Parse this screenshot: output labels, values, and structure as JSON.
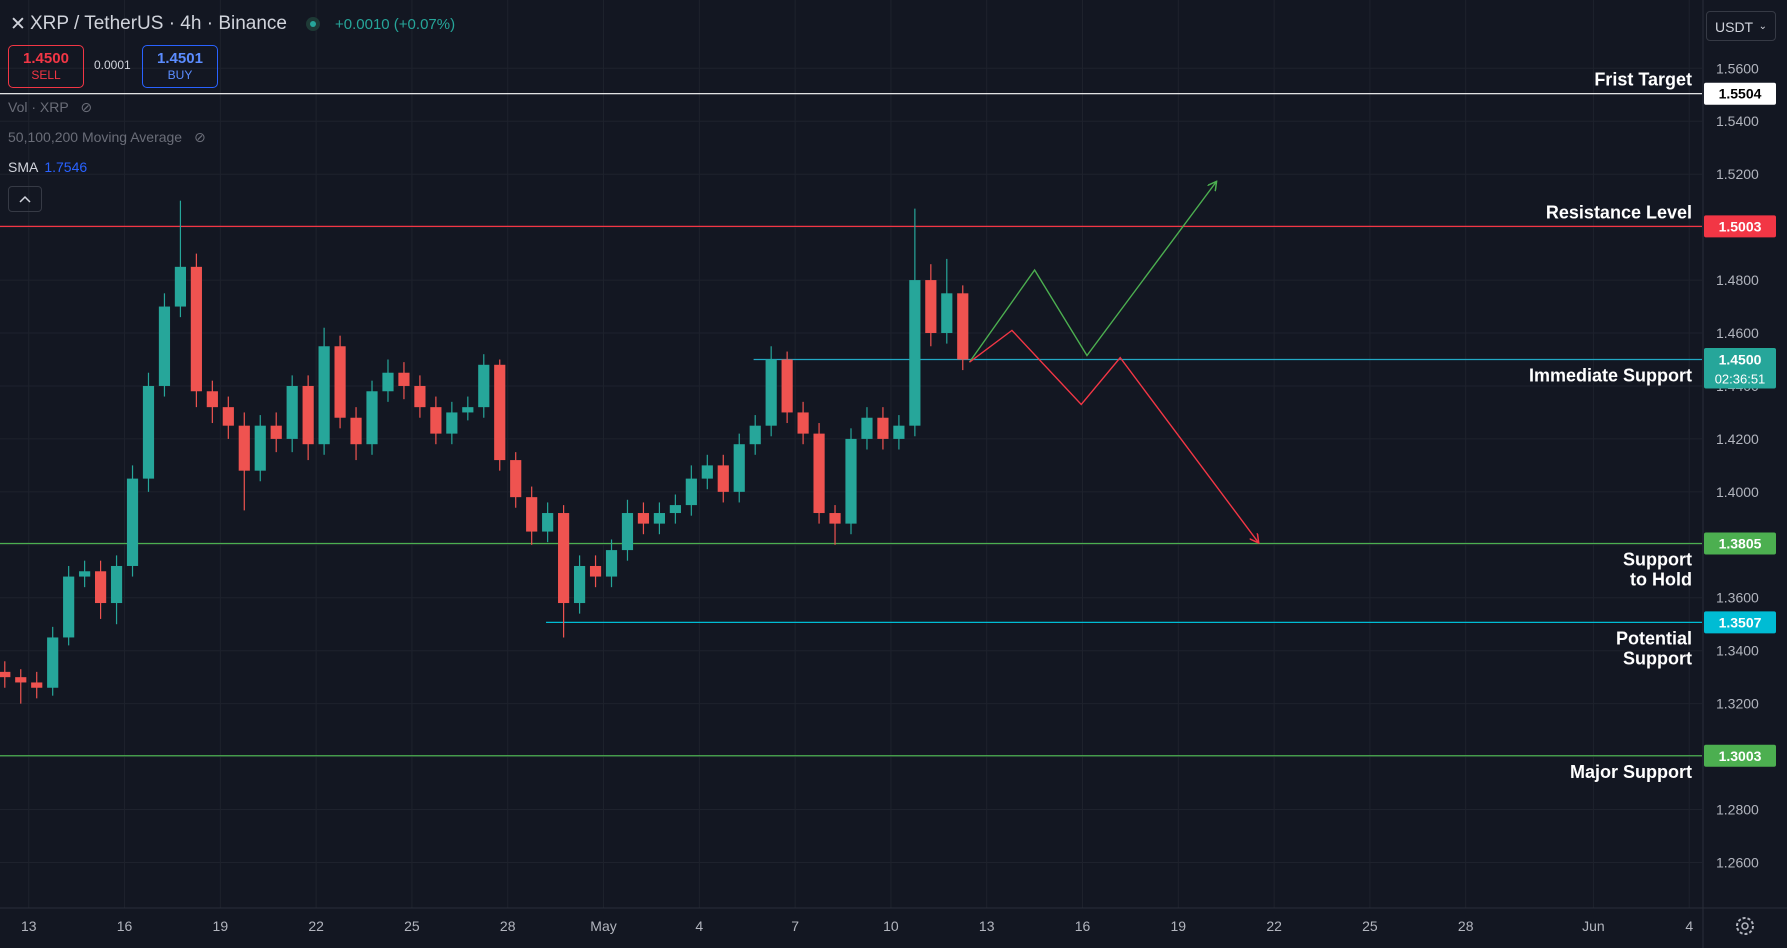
{
  "header": {
    "symbol": "XRP / TetherUS · 4h · Binance",
    "change": "+0.0010 (+0.07%)",
    "sell_price": "1.4500",
    "sell_label": "SELL",
    "spread": "0.0001",
    "buy_price": "1.4501",
    "buy_label": "BUY",
    "currency": "USDT"
  },
  "indicators": {
    "volume": "Vol · XRP",
    "moving_average": "50,100,200 Moving Average",
    "sma_label": "SMA",
    "sma_value": "1.7546"
  },
  "chart_data": {
    "type": "candlestick",
    "up_color": "#26a69a",
    "down_color": "#ef5350",
    "x": [
      12.25,
      12.75,
      13.25,
      13.75,
      14.25,
      14.75,
      15.25,
      15.75,
      16.25,
      16.75,
      17.25,
      17.75,
      18.25,
      18.75,
      19.25,
      19.75,
      20.25,
      20.75,
      21.25,
      21.75,
      22.25,
      22.75,
      23.25,
      23.75,
      24.25,
      24.75,
      25.25,
      25.75,
      26.25,
      26.75,
      27.25,
      27.75,
      28.25,
      28.75,
      29.25,
      29.75,
      30.25,
      30.75,
      31.25,
      31.75,
      32.25,
      32.75,
      33.25,
      33.75,
      34.25,
      34.75,
      35.25,
      35.75,
      36.25,
      36.75,
      37.25,
      37.75,
      38.25,
      38.75,
      39.25,
      39.75,
      40.25,
      40.75,
      41.25,
      41.75,
      42.25
    ],
    "open": [
      1.332,
      1.33,
      1.328,
      1.326,
      1.345,
      1.368,
      1.37,
      1.358,
      1.372,
      1.405,
      1.44,
      1.47,
      1.485,
      1.438,
      1.432,
      1.425,
      1.408,
      1.425,
      1.42,
      1.44,
      1.418,
      1.455,
      1.428,
      1.418,
      1.438,
      1.445,
      1.44,
      1.432,
      1.422,
      1.43,
      1.432,
      1.448,
      1.412,
      1.398,
      1.385,
      1.392,
      1.358,
      1.372,
      1.368,
      1.378,
      1.392,
      1.388,
      1.392,
      1.395,
      1.405,
      1.41,
      1.4,
      1.418,
      1.425,
      1.45,
      1.43,
      1.422,
      1.392,
      1.388,
      1.42,
      1.428,
      1.42,
      1.425,
      1.48,
      1.46,
      1.475
    ],
    "high": [
      1.336,
      1.333,
      1.332,
      1.349,
      1.372,
      1.374,
      1.374,
      1.376,
      1.41,
      1.445,
      1.475,
      1.51,
      1.49,
      1.442,
      1.436,
      1.43,
      1.429,
      1.43,
      1.444,
      1.444,
      1.462,
      1.459,
      1.432,
      1.442,
      1.45,
      1.449,
      1.444,
      1.436,
      1.434,
      1.436,
      1.452,
      1.45,
      1.415,
      1.402,
      1.396,
      1.395,
      1.376,
      1.376,
      1.382,
      1.397,
      1.396,
      1.396,
      1.399,
      1.41,
      1.414,
      1.414,
      1.422,
      1.429,
      1.455,
      1.453,
      1.434,
      1.426,
      1.395,
      1.424,
      1.432,
      1.432,
      1.429,
      1.507,
      1.486,
      1.488,
      1.478
    ],
    "low": [
      1.326,
      1.32,
      1.322,
      1.323,
      1.342,
      1.364,
      1.352,
      1.35,
      1.368,
      1.4,
      1.436,
      1.466,
      1.432,
      1.426,
      1.42,
      1.393,
      1.404,
      1.415,
      1.415,
      1.412,
      1.414,
      1.424,
      1.412,
      1.414,
      1.434,
      1.435,
      1.428,
      1.418,
      1.418,
      1.427,
      1.428,
      1.408,
      1.394,
      1.38,
      1.381,
      1.345,
      1.354,
      1.364,
      1.364,
      1.374,
      1.384,
      1.384,
      1.388,
      1.391,
      1.401,
      1.396,
      1.396,
      1.414,
      1.421,
      1.426,
      1.418,
      1.388,
      1.38,
      1.384,
      1.416,
      1.416,
      1.416,
      1.421,
      1.455,
      1.456,
      1.446
    ],
    "close": [
      1.33,
      1.328,
      1.326,
      1.345,
      1.368,
      1.37,
      1.358,
      1.372,
      1.405,
      1.44,
      1.47,
      1.485,
      1.438,
      1.432,
      1.425,
      1.408,
      1.425,
      1.42,
      1.44,
      1.418,
      1.455,
      1.428,
      1.418,
      1.438,
      1.445,
      1.44,
      1.432,
      1.422,
      1.43,
      1.432,
      1.448,
      1.412,
      1.398,
      1.385,
      1.392,
      1.358,
      1.372,
      1.368,
      1.378,
      1.392,
      1.388,
      1.392,
      1.395,
      1.405,
      1.41,
      1.4,
      1.418,
      1.425,
      1.45,
      1.43,
      1.422,
      1.392,
      1.388,
      1.42,
      1.428,
      1.42,
      1.425,
      1.48,
      1.46,
      1.475,
      1.45
    ],
    "xlim": [
      12.1,
      65.4
    ],
    "xticks": [
      13,
      16,
      19,
      22,
      25,
      28,
      {
        "value": 31,
        "label": "May"
      },
      {
        "value": 34,
        "label": "4"
      },
      {
        "value": 37,
        "label": "7"
      },
      {
        "value": 40,
        "label": "10"
      },
      {
        "value": 43,
        "label": "13"
      },
      {
        "value": 46,
        "label": "16"
      },
      {
        "value": 49,
        "label": "19"
      },
      {
        "value": 52,
        "label": "22"
      },
      {
        "value": 55,
        "label": "25"
      },
      {
        "value": 58,
        "label": "28"
      },
      {
        "value": 62,
        "label": "Jun"
      },
      {
        "value": 65,
        "label": "4"
      }
    ],
    "ylim": [
      1.2428,
      1.5858
    ],
    "yticks": [
      {
        "value": 1.26,
        "label": "1.2600"
      },
      {
        "value": 1.28,
        "label": "1.2800"
      },
      {
        "value": 1.3,
        "label": "1.3000"
      },
      {
        "value": 1.32,
        "label": "1.3200"
      },
      {
        "value": 1.34,
        "label": "1.3400"
      },
      {
        "value": 1.36,
        "label": "1.3600"
      },
      {
        "value": 1.38,
        "label": "1.3800"
      },
      {
        "value": 1.4,
        "label": "1.4000"
      },
      {
        "value": 1.42,
        "label": "1.4200"
      },
      {
        "value": 1.44,
        "label": "1.4400"
      },
      {
        "value": 1.46,
        "label": "1.4600"
      },
      {
        "value": 1.48,
        "label": "1.4800"
      },
      {
        "value": 1.5,
        "label": "1.5000"
      },
      {
        "value": 1.52,
        "label": "1.5200"
      },
      {
        "value": 1.54,
        "label": "1.5400"
      },
      {
        "value": 1.56,
        "label": "1.5600"
      }
    ],
    "grid": true,
    "last_price": {
      "value": 1.45,
      "label": "1.4500",
      "countdown": "02:36:51",
      "color": "#26a69a"
    },
    "bid_price": {
      "value": 1.4502,
      "color": "#22ab94"
    },
    "levels": [
      {
        "name": [
          "Frist Target"
        ],
        "value": 1.5504,
        "color": "#ffffff"
      },
      {
        "name": [
          "Resistance Level"
        ],
        "value": 1.5003,
        "color": "#f23645"
      },
      {
        "name": [
          "Immediate Support"
        ],
        "value": 1.45,
        "color": "#22a8c4",
        "from": 35.7
      },
      {
        "name": [
          "Support",
          "to Hold"
        ],
        "value": 1.3805,
        "color": "#4caf50"
      },
      {
        "name": [
          "Potential",
          "Support"
        ],
        "value": 1.3507,
        "color": "#00bcd4",
        "from": 29.2
      },
      {
        "name": [
          "Major Support"
        ],
        "value": 1.3003,
        "color": "#4caf50"
      }
    ],
    "projections": [
      {
        "color": "#4caf50",
        "x": [
          42.46,
          44.5,
          46.14,
          50.18
        ],
        "y": [
          1.449,
          1.4838,
          1.4515,
          1.517
        ]
      },
      {
        "color": "#f23645",
        "x": [
          42.46,
          43.79,
          45.96,
          47.18,
          51.5
        ],
        "y": [
          1.449,
          1.461,
          1.433,
          1.4507,
          1.381
        ]
      }
    ]
  }
}
